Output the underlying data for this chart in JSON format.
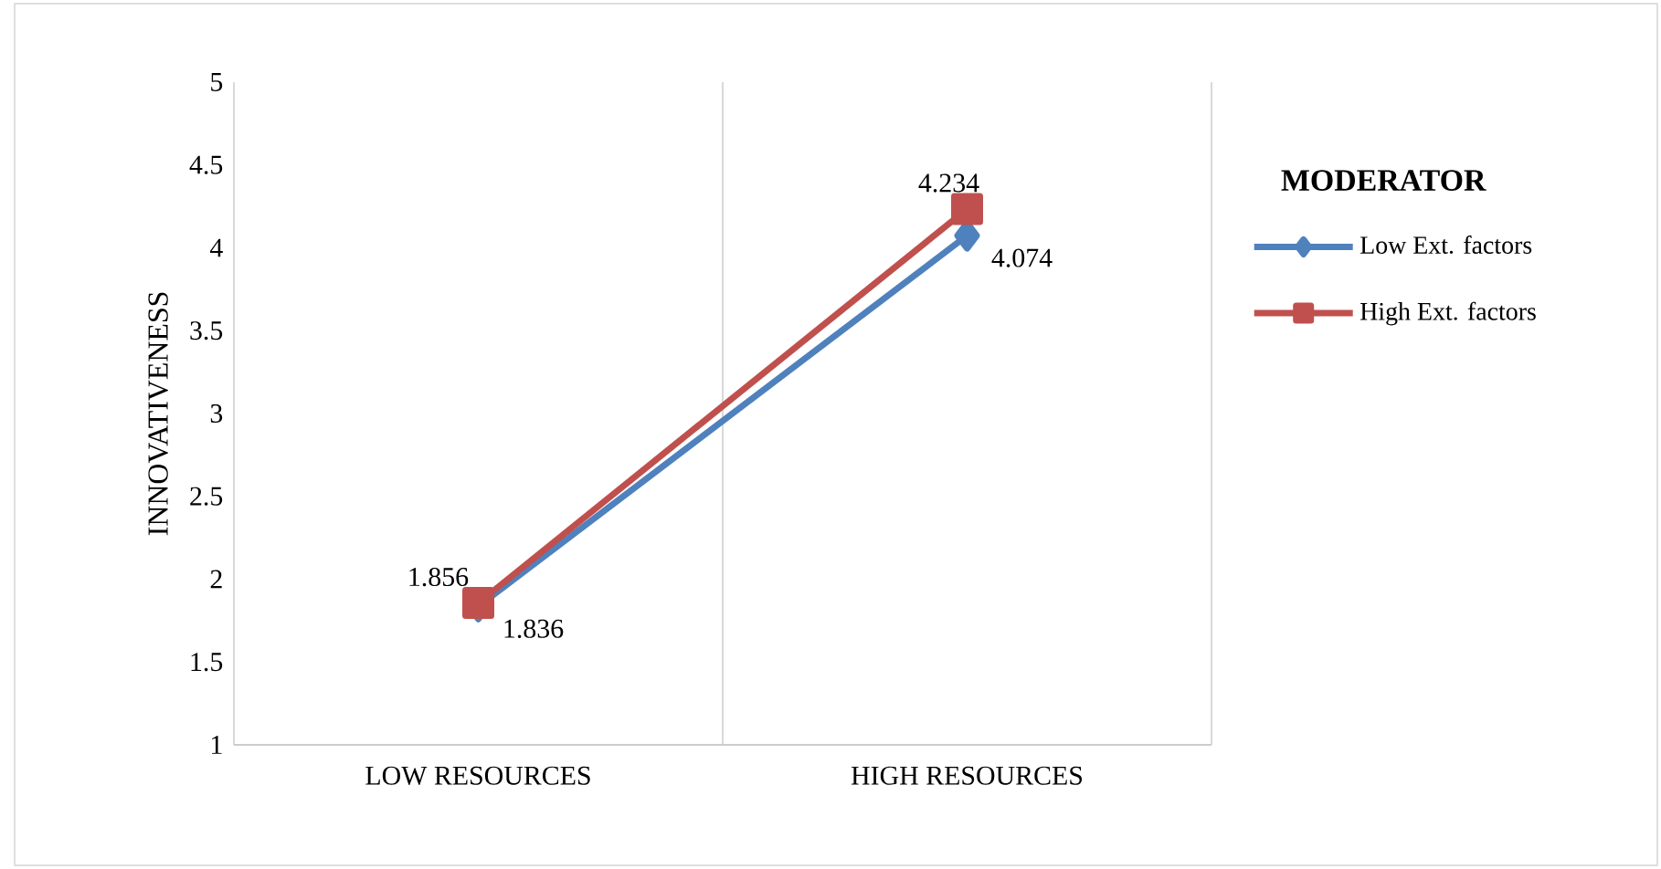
{
  "chart_data": {
    "type": "line",
    "ylabel": "INNOVATIVENESS",
    "legend_title": "MODERATOR",
    "categories": [
      "LOW RESOURCES",
      "HIGH RESOURCES"
    ],
    "series": [
      {
        "name": "Low Ext. factors",
        "color": "#4f81bd",
        "marker": "diamond",
        "values": [
          1.836,
          4.074
        ]
      },
      {
        "name": "High Ext. factors",
        "color": "#c0504d",
        "marker": "square",
        "values": [
          1.856,
          4.234
        ]
      }
    ],
    "ylim": [
      1,
      5
    ],
    "yticks": [
      1,
      1.5,
      2,
      2.5,
      3,
      3.5,
      4,
      4.5,
      5
    ],
    "grid": "x",
    "legend": "right",
    "data_labels": true
  }
}
